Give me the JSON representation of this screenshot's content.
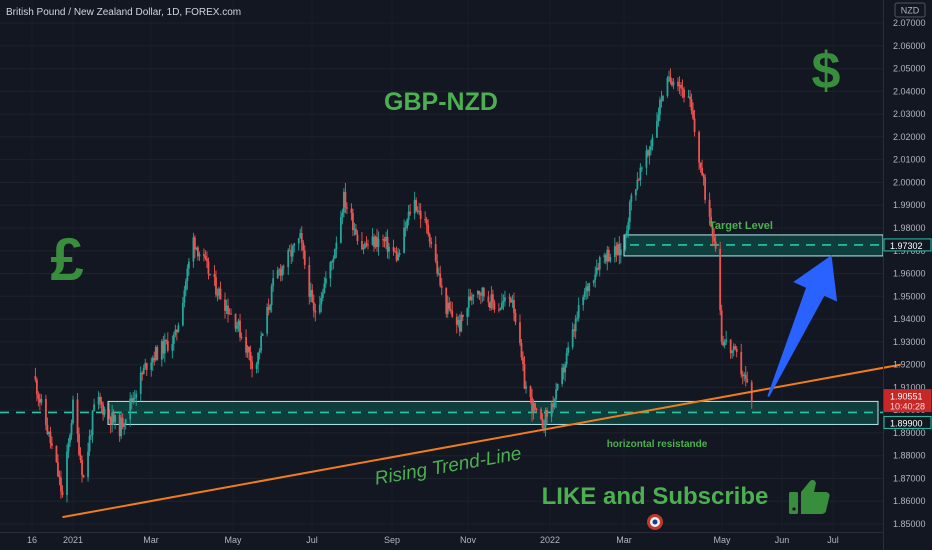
{
  "header": {
    "title": "British Pound / New Zealand Dollar, 1D, FOREX.com",
    "currency": "NZD"
  },
  "colors": {
    "background": "#131722",
    "up": "#26a69a",
    "down": "#ef5350",
    "zone": "#0d5c50",
    "accent_green": "#4caf50",
    "trend": "#f07c1c",
    "arrow": "#2962ff"
  },
  "annotations": {
    "main_title": "GBP-NZD",
    "pound_symbol": "£",
    "dollar_symbol": "$",
    "target_label": "Target Level",
    "support_label": "horizontal resistande",
    "trend_label": "Rising Trend-Line",
    "cta_label": "LIKE and Subscribe",
    "thumbs_icon": "thumbs-up-icon"
  },
  "price_tags": {
    "target": "1.97302",
    "current": "1.90551",
    "countdown": "10:40:28",
    "support": "1.89900"
  },
  "chart_data": {
    "type": "candlestick",
    "title": "British Pound / New Zealand Dollar, 1D, FOREX.com",
    "currency": "NZD",
    "ylim": [
      1.845,
      2.075
    ],
    "y_ticks": [
      "1.85000",
      "1.86000",
      "1.87000",
      "1.88000",
      "1.89000",
      "1.90000",
      "1.91000",
      "1.92000",
      "1.93000",
      "1.94000",
      "1.95000",
      "1.96000",
      "1.97000",
      "1.98000",
      "1.99000",
      "2.00000",
      "2.01000",
      "2.02000",
      "2.03000",
      "2.04000",
      "2.05000",
      "2.06000",
      "2.07000"
    ],
    "x_ticks": [
      "16",
      "2021",
      "Mar",
      "May",
      "Jul",
      "Sep",
      "Nov",
      "2022",
      "Mar",
      "May",
      "Jun",
      "Jul"
    ],
    "price_path": [
      [
        "2020-12-06",
        1.915
      ],
      [
        "2020-12-20",
        1.878
      ],
      [
        "2020-12-25",
        1.862
      ],
      [
        "2021-01-01",
        1.902
      ],
      [
        "2021-01-08",
        1.87
      ],
      [
        "2021-01-16",
        1.905
      ],
      [
        "2021-02-01",
        1.892
      ],
      [
        "2021-02-20",
        1.922
      ],
      [
        "2021-03-10",
        1.932
      ],
      [
        "2021-03-22",
        1.975
      ],
      [
        "2021-04-05",
        1.955
      ],
      [
        "2021-04-20",
        1.938
      ],
      [
        "2021-05-02",
        1.918
      ],
      [
        "2021-05-15",
        1.958
      ],
      [
        "2021-06-01",
        1.975
      ],
      [
        "2021-06-10",
        1.942
      ],
      [
        "2021-06-22",
        1.965
      ],
      [
        "2021-06-30",
        1.993
      ],
      [
        "2021-07-12",
        1.972
      ],
      [
        "2021-07-25",
        1.975
      ],
      [
        "2021-08-05",
        1.967
      ],
      [
        "2021-08-15",
        1.993
      ],
      [
        "2021-08-26",
        1.977
      ],
      [
        "2021-09-05",
        1.946
      ],
      [
        "2021-09-15",
        1.937
      ],
      [
        "2021-09-25",
        1.955
      ],
      [
        "2021-10-10",
        1.945
      ],
      [
        "2021-10-20",
        1.95
      ],
      [
        "2021-10-28",
        1.912
      ],
      [
        "2021-11-02",
        1.902
      ],
      [
        "2021-11-08",
        1.893
      ],
      [
        "2021-11-18",
        1.906
      ],
      [
        "2021-12-05",
        1.948
      ],
      [
        "2021-12-18",
        1.968
      ],
      [
        "2022-01-01",
        1.97
      ],
      [
        "2022-01-08",
        1.997
      ],
      [
        "2022-01-18",
        2.012
      ],
      [
        "2022-01-28",
        2.04
      ],
      [
        "2022-02-05",
        2.048
      ],
      [
        "2022-02-15",
        2.034
      ],
      [
        "2022-02-25",
        1.995
      ],
      [
        "2022-03-05",
        1.97
      ],
      [
        "2022-03-08",
        1.932
      ],
      [
        "2022-03-18",
        1.923
      ],
      [
        "2022-03-28",
        1.906
      ]
    ],
    "levels": {
      "target": 1.973,
      "support": 1.899
    },
    "trend_line": [
      [
        "2020-12-25",
        1.853
      ],
      [
        "2022-07-05",
        1.92
      ]
    ],
    "arrow": [
      [
        "2022-04-08",
        1.906
      ],
      [
        "2022-05-20",
        1.968
      ]
    ]
  }
}
